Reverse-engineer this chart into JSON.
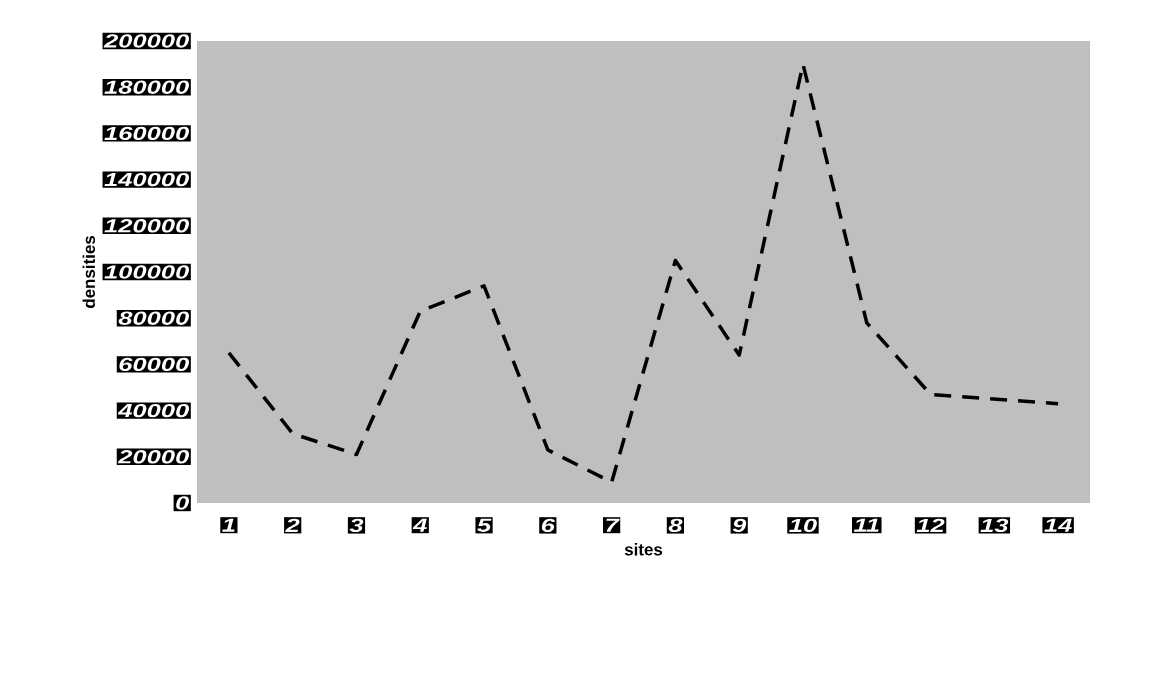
{
  "chart_data": {
    "type": "line",
    "xlabel": "sites",
    "ylabel": "densities",
    "categories": [
      "1",
      "2",
      "3",
      "4",
      "5",
      "6",
      "7",
      "8",
      "9",
      "10",
      "11",
      "12",
      "13",
      "14"
    ],
    "values": [
      65000,
      30000,
      21000,
      83000,
      94000,
      23000,
      9000,
      105000,
      64000,
      190000,
      78000,
      47000,
      45000,
      43000
    ],
    "color": "#000000",
    "line_style": "dashed",
    "ylim": [
      0,
      200000
    ],
    "yticks": [
      0,
      20000,
      40000,
      60000,
      80000,
      100000,
      120000,
      140000,
      160000,
      180000,
      200000
    ]
  }
}
